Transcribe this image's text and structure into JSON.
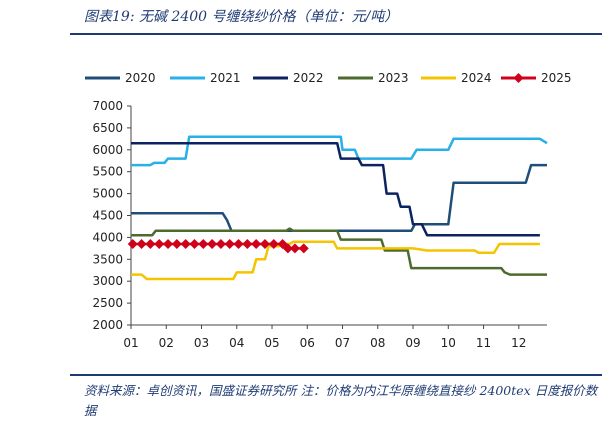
{
  "figure": {
    "title": "图表19:  无碱 2400 号缠绕纱价格（单位：元/吨）",
    "source": "资料来源：卓创资讯，国盛证券研究所   注：价格为内江华原缠绕直接纱 2400tex 日度报价数据"
  },
  "chart_data": {
    "type": "line",
    "title": "",
    "xlabel": "",
    "ylabel": "",
    "x_ticks": [
      "01",
      "02",
      "03",
      "04",
      "05",
      "06",
      "07",
      "08",
      "09",
      "10",
      "11",
      "12"
    ],
    "xlim": [
      1,
      12.8
    ],
    "ylim": [
      2000,
      7000
    ],
    "y_ticks": [
      2000,
      2500,
      3000,
      3500,
      4000,
      4500,
      5000,
      5500,
      6000,
      6500,
      7000
    ],
    "grid": false,
    "legend_position": "top",
    "series": [
      {
        "name": "2020",
        "color": "#1f4e79",
        "points": [
          [
            1,
            4550
          ],
          [
            3.6,
            4550
          ],
          [
            3.72,
            4400
          ],
          [
            3.85,
            4150
          ],
          [
            8.95,
            4150
          ],
          [
            9.05,
            4300
          ],
          [
            10.0,
            4300
          ],
          [
            10.15,
            5250
          ],
          [
            12.2,
            5250
          ],
          [
            12.35,
            5650
          ],
          [
            12.8,
            5650
          ]
        ]
      },
      {
        "name": "2021",
        "color": "#2ab0e8",
        "points": [
          [
            1,
            5650
          ],
          [
            1.55,
            5650
          ],
          [
            1.65,
            5700
          ],
          [
            1.95,
            5700
          ],
          [
            2.05,
            5800
          ],
          [
            2.55,
            5800
          ],
          [
            2.65,
            6300
          ],
          [
            6.95,
            6300
          ],
          [
            7.0,
            6000
          ],
          [
            7.35,
            6000
          ],
          [
            7.45,
            5800
          ],
          [
            8.95,
            5800
          ],
          [
            9.1,
            6000
          ],
          [
            10.0,
            6000
          ],
          [
            10.15,
            6250
          ],
          [
            12.6,
            6250
          ],
          [
            12.8,
            6150
          ]
        ]
      },
      {
        "name": "2022",
        "color": "#0d2260",
        "points": [
          [
            1,
            6150
          ],
          [
            6.85,
            6150
          ],
          [
            6.95,
            5800
          ],
          [
            7.45,
            5800
          ],
          [
            7.55,
            5650
          ],
          [
            8.15,
            5650
          ],
          [
            8.25,
            5000
          ],
          [
            8.55,
            5000
          ],
          [
            8.65,
            4700
          ],
          [
            8.9,
            4700
          ],
          [
            9.0,
            4300
          ],
          [
            9.25,
            4300
          ],
          [
            9.4,
            4050
          ],
          [
            12.6,
            4050
          ]
        ]
      },
      {
        "name": "2023",
        "color": "#4d6b2e",
        "points": [
          [
            1,
            4050
          ],
          [
            1.6,
            4050
          ],
          [
            1.7,
            4150
          ],
          [
            5.4,
            4150
          ],
          [
            5.5,
            4200
          ],
          [
            5.6,
            4150
          ],
          [
            6.85,
            4150
          ],
          [
            6.95,
            3950
          ],
          [
            8.1,
            3950
          ],
          [
            8.2,
            3700
          ],
          [
            8.85,
            3700
          ],
          [
            8.95,
            3300
          ],
          [
            11.5,
            3300
          ],
          [
            11.6,
            3200
          ],
          [
            11.75,
            3150
          ],
          [
            12.8,
            3150
          ]
        ]
      },
      {
        "name": "2024",
        "color": "#f5c400",
        "points": [
          [
            1,
            3150
          ],
          [
            1.3,
            3150
          ],
          [
            1.45,
            3050
          ],
          [
            3.9,
            3050
          ],
          [
            4.0,
            3200
          ],
          [
            4.45,
            3200
          ],
          [
            4.55,
            3500
          ],
          [
            4.8,
            3500
          ],
          [
            4.9,
            3800
          ],
          [
            5.2,
            3800
          ],
          [
            5.3,
            3850
          ],
          [
            5.5,
            3850
          ],
          [
            5.6,
            3900
          ],
          [
            6.75,
            3900
          ],
          [
            6.85,
            3750
          ],
          [
            8.8,
            3750
          ],
          [
            9.0,
            3750
          ],
          [
            9.4,
            3700
          ],
          [
            10.75,
            3700
          ],
          [
            10.85,
            3650
          ],
          [
            11.3,
            3650
          ],
          [
            11.45,
            3850
          ],
          [
            12.6,
            3850
          ]
        ]
      },
      {
        "name": "2025",
        "color": "#d0021b",
        "marker": "diamond",
        "points": [
          [
            1.05,
            3850
          ],
          [
            1.3,
            3850
          ],
          [
            1.55,
            3850
          ],
          [
            1.8,
            3850
          ],
          [
            2.05,
            3850
          ],
          [
            2.3,
            3850
          ],
          [
            2.55,
            3850
          ],
          [
            2.8,
            3850
          ],
          [
            3.05,
            3850
          ],
          [
            3.3,
            3850
          ],
          [
            3.55,
            3850
          ],
          [
            3.8,
            3850
          ],
          [
            4.05,
            3850
          ],
          [
            4.3,
            3850
          ],
          [
            4.55,
            3850
          ],
          [
            4.8,
            3850
          ],
          [
            5.05,
            3850
          ],
          [
            5.3,
            3850
          ],
          [
            5.45,
            3750
          ],
          [
            5.65,
            3750
          ],
          [
            5.9,
            3750
          ]
        ]
      }
    ]
  }
}
